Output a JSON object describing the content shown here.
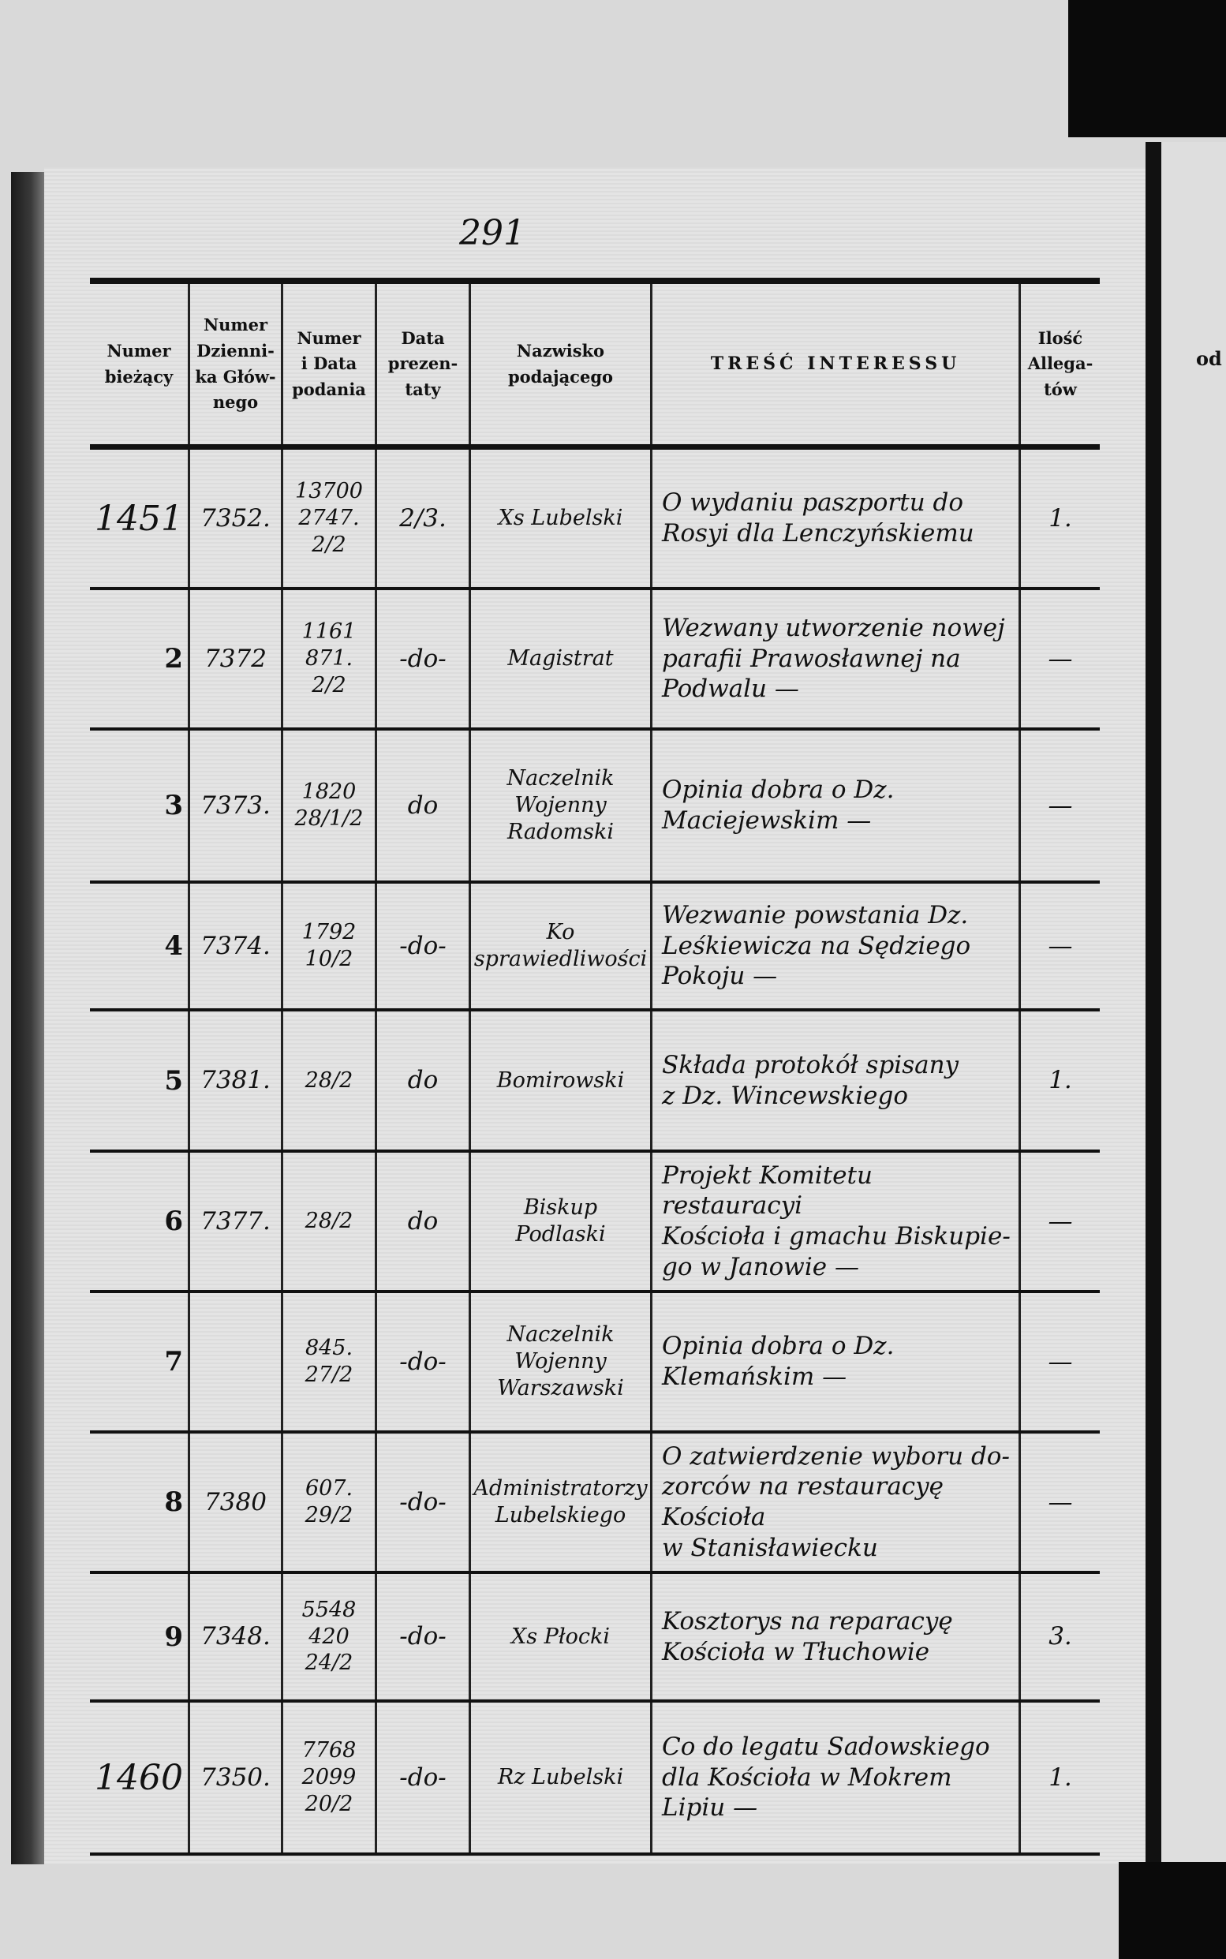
{
  "page_number": "291",
  "right_page_fragment": "od",
  "header": {
    "col_numer_biezacy": [
      "Numer",
      "bieżący"
    ],
    "col_numer_dziennika": [
      "Numer",
      "Dzienni-",
      "ka Głów-",
      "nego"
    ],
    "col_numer_data_podania": [
      "Numer",
      "i Data",
      "podania"
    ],
    "col_data_prezentaty": [
      "Data",
      "prezen-",
      "taty"
    ],
    "col_nazwisko": [
      "Nazwisko",
      "podającego"
    ],
    "col_tresc": [
      "TREŚĆ INTERESSU"
    ],
    "col_ilosc": [
      "Ilość",
      "Allega-",
      "tów"
    ]
  },
  "rows": [
    {
      "nr": "1451",
      "dziennik": "7352.",
      "podanie": [
        "13700",
        "2747.",
        "2/2"
      ],
      "prezentata": "2/3.",
      "nazwisko": [
        "Xs Lubelski"
      ],
      "tresc": [
        "O wydaniu paszportu do",
        "Rosyi dla Lenczyńskiemu"
      ],
      "allegaty": "1."
    },
    {
      "nr": "2",
      "dziennik": "7372",
      "podanie": [
        "1161",
        "871.",
        "2/2"
      ],
      "prezentata": "-do-",
      "nazwisko": [
        "Magistrat"
      ],
      "tresc": [
        "Wezwany utworzenie nowej",
        "parafii Prawosławnej na",
        "Podwalu —"
      ],
      "allegaty": "—"
    },
    {
      "nr": "3",
      "dziennik": "7373.",
      "podanie": [
        "1820",
        "28/1/2"
      ],
      "prezentata": "do",
      "nazwisko": [
        "Naczelnik Wojenny",
        "Radomski"
      ],
      "tresc": [
        "Opinia dobra o Dz.",
        "Maciejewskim —"
      ],
      "allegaty": "—"
    },
    {
      "nr": "4",
      "dziennik": "7374.",
      "podanie": [
        "1792",
        "10/2"
      ],
      "prezentata": "-do-",
      "nazwisko": [
        "Ko sprawiedliwości"
      ],
      "tresc": [
        "Wezwanie powstania Dz.",
        "Leśkiewicza na Sędziego",
        "Pokoju —"
      ],
      "allegaty": "—"
    },
    {
      "nr": "5",
      "dziennik": "7381.",
      "podanie": [
        "28/2"
      ],
      "prezentata": "do",
      "nazwisko": [
        "Bomirowski"
      ],
      "tresc": [
        "Składa protokół spisany",
        "z Dz. Wincewskiego"
      ],
      "allegaty": "1."
    },
    {
      "nr": "6",
      "dziennik": "7377.",
      "podanie": [
        "28/2"
      ],
      "prezentata": "do",
      "nazwisko": [
        "Biskup",
        "Podlaski"
      ],
      "tresc": [
        "Projekt Komitetu restauracyi",
        "Kościoła i gmachu Biskupie-",
        "go w Janowie —"
      ],
      "allegaty": "—"
    },
    {
      "nr": "7",
      "dziennik": "",
      "podanie": [
        "845.",
        "27/2"
      ],
      "prezentata": "-do-",
      "nazwisko": [
        "Naczelnik Wojenny",
        "Warszawski"
      ],
      "tresc": [
        "Opinia dobra o Dz.",
        "Klemańskim —"
      ],
      "allegaty": "—"
    },
    {
      "nr": "8",
      "dziennik": "7380",
      "podanie": [
        "607.",
        "29/2"
      ],
      "prezentata": "-do-",
      "nazwisko": [
        "Administratorzy",
        "Lubelskiego"
      ],
      "tresc": [
        "O zatwierdzenie wyboru do-",
        "zorców na restauracyę Kościoła",
        "w Stanisławiecku"
      ],
      "allegaty": "—"
    },
    {
      "nr": "9",
      "dziennik": "7348.",
      "podanie": [
        "5548",
        "420",
        "24/2"
      ],
      "prezentata": "-do-",
      "nazwisko": [
        "Xs Płocki"
      ],
      "tresc": [
        "Kosztorys na reparacyę",
        "Kościoła w Tłuchowie"
      ],
      "allegaty": "3."
    },
    {
      "nr": "1460",
      "dziennik": "7350.",
      "podanie": [
        "7768",
        "2099",
        "20/2"
      ],
      "prezentata": "-do-",
      "nazwisko": [
        "Rz Lubelski"
      ],
      "tresc": [
        "Co do legatu Sadowskiego",
        "dla Kościoła w Mokrem",
        "Lipiu —"
      ],
      "allegaty": "1."
    }
  ],
  "colors": {
    "paper": "#e0e0e0",
    "ink": "#111111",
    "scan_border": "#0a0a0a"
  }
}
